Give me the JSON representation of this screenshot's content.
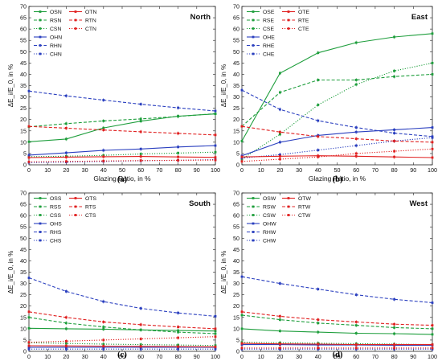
{
  "figure": {
    "captions": [
      "(a)",
      "(b)",
      "(c)",
      "(d)"
    ]
  },
  "chart_data": [
    {
      "type": "line",
      "title": "North",
      "xlabel": "Glazing Ratio, in %",
      "ylabel": "ΔE_i/E_0, in %",
      "xlim": [
        0,
        100
      ],
      "ylim": [
        0,
        70
      ],
      "xticks": [
        0,
        10,
        20,
        30,
        40,
        50,
        60,
        70,
        80,
        90,
        100
      ],
      "yticks": [
        0,
        5,
        10,
        15,
        20,
        25,
        30,
        35,
        40,
        45,
        50,
        55,
        60,
        65,
        70
      ],
      "legend_position": "top-left",
      "x": [
        0,
        20,
        40,
        60,
        80,
        100
      ],
      "series": [
        {
          "name": "OSN",
          "color": "#1e9e3c",
          "dash": "solid",
          "values": [
            10.2,
            11.4,
            16.3,
            19.3,
            21.5,
            22.5
          ]
        },
        {
          "name": "RSN",
          "color": "#1e9e3c",
          "dash": "dashed",
          "values": [
            16.8,
            18.2,
            19.4,
            20.3,
            21.4,
            22.6
          ]
        },
        {
          "name": "CSN",
          "color": "#1e9e3c",
          "dash": "dotted",
          "values": [
            3.6,
            3.8,
            4.2,
            4.8,
            5.2,
            5.6
          ]
        },
        {
          "name": "OHN",
          "color": "#2a3fbf",
          "dash": "solid",
          "values": [
            4.3,
            5.3,
            6.4,
            7.0,
            7.9,
            8.5
          ]
        },
        {
          "name": "RHN",
          "color": "#2a3fbf",
          "dash": "dashed",
          "values": [
            32.6,
            30.5,
            28.6,
            26.8,
            25.2,
            23.8
          ]
        },
        {
          "name": "CHN",
          "color": "#2a3fbf",
          "dash": "dotted",
          "values": [
            1.0,
            1.2,
            1.5,
            1.8,
            2.0,
            2.3
          ]
        },
        {
          "name": "OTN",
          "color": "#e02020",
          "dash": "solid",
          "values": [
            3.2,
            3.4,
            3.6,
            3.7,
            3.5,
            3.3
          ]
        },
        {
          "name": "RTN",
          "color": "#e02020",
          "dash": "dashed",
          "values": [
            17.0,
            16.2,
            15.4,
            14.6,
            13.9,
            13.2
          ]
        },
        {
          "name": "CTN",
          "color": "#e02020",
          "dash": "dotted",
          "values": [
            1.3,
            1.5,
            1.7,
            1.9,
            2.0,
            2.1
          ]
        }
      ]
    },
    {
      "type": "line",
      "title": "East",
      "xlabel": "Glazing Ratio, in %",
      "ylabel": "ΔE_i/E_0, in %",
      "xlim": [
        0,
        100
      ],
      "ylim": [
        0,
        70
      ],
      "xticks": [
        0,
        10,
        20,
        30,
        40,
        50,
        60,
        70,
        80,
        90,
        100
      ],
      "yticks": [
        0,
        5,
        10,
        15,
        20,
        25,
        30,
        35,
        40,
        45,
        50,
        55,
        60,
        65,
        70
      ],
      "legend_position": "top-left",
      "x": [
        0,
        20,
        40,
        60,
        80,
        100
      ],
      "series": [
        {
          "name": "OSE",
          "color": "#1e9e3c",
          "dash": "solid",
          "values": [
            10.5,
            40.5,
            49.5,
            54.0,
            56.5,
            58.0
          ]
        },
        {
          "name": "RSE",
          "color": "#1e9e3c",
          "dash": "dashed",
          "values": [
            17.0,
            32.0,
            37.5,
            37.5,
            39.0,
            40.0
          ]
        },
        {
          "name": "CSE",
          "color": "#1e9e3c",
          "dash": "dotted",
          "values": [
            2.5,
            13.5,
            26.5,
            35.5,
            41.5,
            45.0
          ]
        },
        {
          "name": "OHE",
          "color": "#2a3fbf",
          "dash": "solid",
          "values": [
            4.0,
            10.0,
            13.0,
            14.5,
            15.5,
            16.5
          ]
        },
        {
          "name": "RHE",
          "color": "#2a3fbf",
          "dash": "dashed",
          "values": [
            33.0,
            24.5,
            19.5,
            16.5,
            14.0,
            12.5
          ]
        },
        {
          "name": "CHE",
          "color": "#2a3fbf",
          "dash": "dotted",
          "values": [
            3.0,
            4.5,
            6.5,
            8.5,
            10.5,
            12.0
          ]
        },
        {
          "name": "OTE",
          "color": "#e02020",
          "dash": "solid",
          "values": [
            3.5,
            3.8,
            4.0,
            3.8,
            3.5,
            3.2
          ]
        },
        {
          "name": "RTE",
          "color": "#e02020",
          "dash": "dashed",
          "values": [
            17.0,
            14.5,
            12.5,
            11.5,
            10.5,
            10.0
          ]
        },
        {
          "name": "CTE",
          "color": "#e02020",
          "dash": "dotted",
          "values": [
            1.5,
            2.5,
            3.5,
            5.0,
            6.0,
            7.0
          ]
        }
      ]
    },
    {
      "type": "line",
      "title": "South",
      "xlabel": "Glazing Ratio, in %",
      "ylabel": "ΔE_i/E_0, in %",
      "xlim": [
        0,
        100
      ],
      "ylim": [
        0,
        70
      ],
      "xticks": [
        0,
        10,
        20,
        30,
        40,
        50,
        60,
        70,
        80,
        90,
        100
      ],
      "yticks": [
        0,
        5,
        10,
        15,
        20,
        25,
        30,
        35,
        40,
        45,
        50,
        55,
        60,
        65,
        70
      ],
      "legend_position": "top-left",
      "x": [
        0,
        20,
        40,
        60,
        80,
        100
      ],
      "series": [
        {
          "name": "OSS",
          "color": "#1e9e3c",
          "dash": "solid",
          "values": [
            10.2,
            10.0,
            9.8,
            9.5,
            9.2,
            9.0
          ]
        },
        {
          "name": "RSS",
          "color": "#1e9e3c",
          "dash": "dashed",
          "values": [
            15.0,
            12.5,
            10.8,
            9.5,
            8.5,
            7.8
          ]
        },
        {
          "name": "CSS",
          "color": "#1e9e3c",
          "dash": "dotted",
          "values": [
            3.8,
            3.5,
            3.2,
            3.0,
            2.8,
            2.6
          ]
        },
        {
          "name": "OHS",
          "color": "#2a3fbf",
          "dash": "solid",
          "values": [
            1.8,
            1.8,
            1.8,
            1.8,
            1.8,
            1.8
          ]
        },
        {
          "name": "RHS",
          "color": "#2a3fbf",
          "dash": "dashed",
          "values": [
            32.5,
            26.5,
            22.0,
            19.0,
            17.0,
            15.5
          ]
        },
        {
          "name": "CHS",
          "color": "#2a3fbf",
          "dash": "dotted",
          "values": [
            1.0,
            1.0,
            1.0,
            1.0,
            1.0,
            1.0
          ]
        },
        {
          "name": "OTS",
          "color": "#e02020",
          "dash": "solid",
          "values": [
            2.5,
            2.4,
            2.3,
            2.2,
            2.1,
            2.0
          ]
        },
        {
          "name": "RTS",
          "color": "#e02020",
          "dash": "dashed",
          "values": [
            17.5,
            15.0,
            13.0,
            11.8,
            10.8,
            10.0
          ]
        },
        {
          "name": "CTS",
          "color": "#e02020",
          "dash": "dotted",
          "values": [
            4.0,
            4.5,
            5.0,
            5.5,
            6.0,
            6.5
          ]
        }
      ]
    },
    {
      "type": "line",
      "title": "West",
      "xlabel": "Glazing Ratio, in %",
      "ylabel": "ΔE_i/E_0, in %",
      "xlim": [
        0,
        100
      ],
      "ylim": [
        0,
        70
      ],
      "xticks": [
        0,
        10,
        20,
        30,
        40,
        50,
        60,
        70,
        80,
        90,
        100
      ],
      "yticks": [
        0,
        5,
        10,
        15,
        20,
        25,
        30,
        35,
        40,
        45,
        50,
        55,
        60,
        65,
        70
      ],
      "legend_position": "top-left",
      "x": [
        0,
        20,
        40,
        60,
        80,
        100
      ],
      "series": [
        {
          "name": "OSW",
          "color": "#1e9e3c",
          "dash": "solid",
          "values": [
            10.0,
            9.0,
            8.5,
            8.0,
            7.8,
            7.5
          ]
        },
        {
          "name": "RSW",
          "color": "#1e9e3c",
          "dash": "dashed",
          "values": [
            16.0,
            14.0,
            12.5,
            11.5,
            10.5,
            10.0
          ]
        },
        {
          "name": "CSW",
          "color": "#1e9e3c",
          "dash": "dotted",
          "values": [
            4.0,
            3.8,
            3.6,
            3.4,
            3.2,
            3.0
          ]
        },
        {
          "name": "OHW",
          "color": "#2a3fbf",
          "dash": "solid",
          "values": [
            3.0,
            3.0,
            2.8,
            2.8,
            2.7,
            2.7
          ]
        },
        {
          "name": "RHW",
          "color": "#2a3fbf",
          "dash": "dashed",
          "values": [
            33.0,
            30.0,
            27.5,
            25.0,
            23.0,
            21.5
          ]
        },
        {
          "name": "CHW",
          "color": "#2a3fbf",
          "dash": "dotted",
          "values": [
            1.0,
            1.0,
            1.0,
            1.0,
            1.0,
            1.0
          ]
        },
        {
          "name": "OTW",
          "color": "#e02020",
          "dash": "solid",
          "values": [
            3.5,
            3.3,
            3.2,
            3.0,
            3.0,
            3.0
          ]
        },
        {
          "name": "RTW",
          "color": "#e02020",
          "dash": "dashed",
          "values": [
            17.5,
            15.5,
            14.0,
            13.0,
            12.0,
            11.5
          ]
        },
        {
          "name": "CTW",
          "color": "#e02020",
          "dash": "dotted",
          "values": [
            1.5,
            1.5,
            1.5,
            1.5,
            1.5,
            1.5
          ]
        }
      ]
    }
  ]
}
